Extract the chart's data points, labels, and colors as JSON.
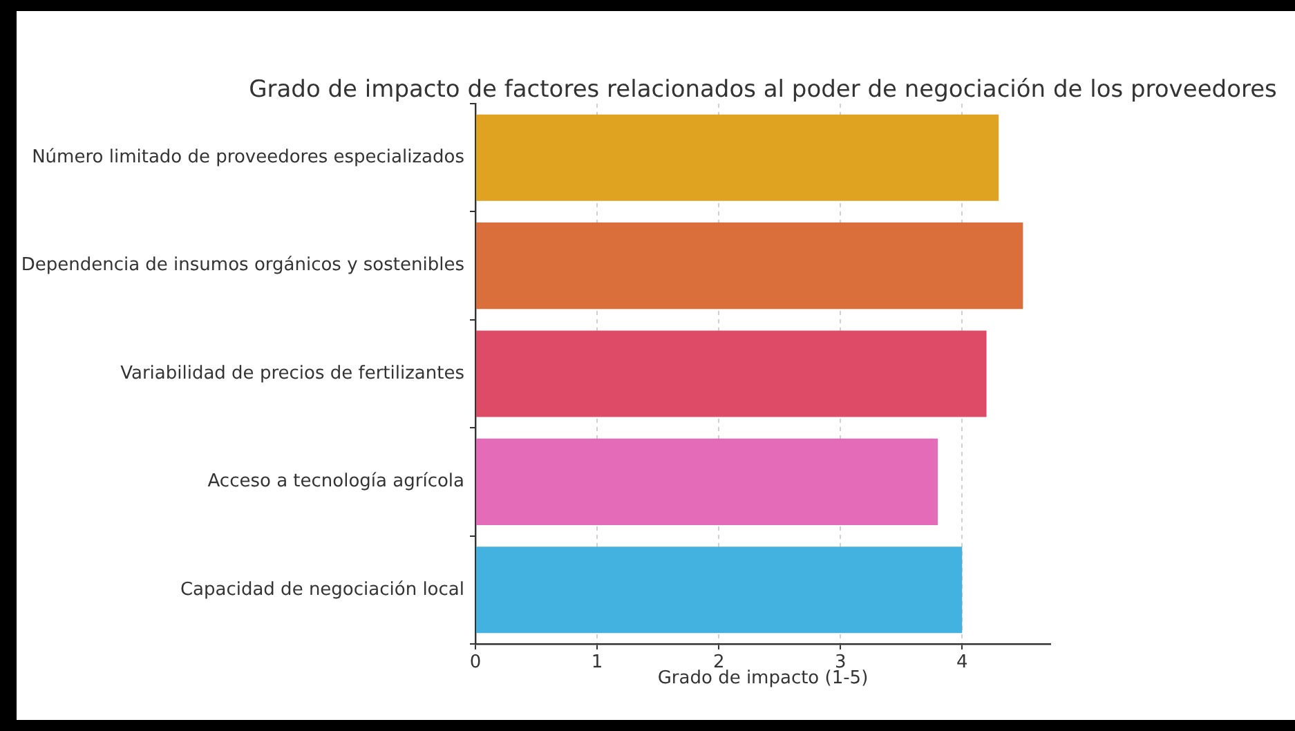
{
  "chart_data": {
    "type": "bar",
    "orientation": "horizontal",
    "title": "Grado de impacto de factores relacionados al poder de negociación de los proveedores",
    "xlabel": "Grado de impacto (1-5)",
    "categories": [
      "Número limitado de proveedores especializados",
      "Dependencia de insumos orgánicos y sostenibles",
      "Variabilidad de precios de fertilizantes",
      "Acceso a tecnología agrícola",
      "Capacidad de negociación local"
    ],
    "values": [
      4.3,
      4.5,
      4.2,
      3.8,
      4.0
    ],
    "colors": [
      "#dfa321",
      "#db6f3b",
      "#dd4b67",
      "#e36bb8",
      "#44b2e1"
    ],
    "xlim": [
      0,
      4.725
    ],
    "xticks": [
      0,
      1,
      2,
      3,
      4
    ],
    "grid": "x"
  }
}
